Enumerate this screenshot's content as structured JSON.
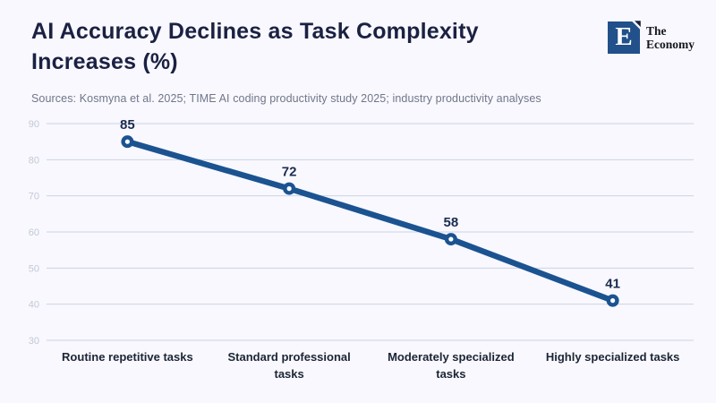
{
  "header": {
    "title_lines": [
      "AI Accuracy Declines as Task Complexity",
      "Increases (%)"
    ],
    "logo": {
      "letter": "E",
      "name_lines": [
        "The",
        "Economy"
      ]
    }
  },
  "sources": "Sources: Kosmyna et al. 2025; TIME AI coding productivity study 2025; industry productivity analyses",
  "colors": {
    "background": "#f8f8fe",
    "title": "#1b2142",
    "line": "#1b5391",
    "marker_fill": "#ffffff",
    "grid": "#ccd3e2",
    "tick_label": "#c3c9d7",
    "value_label": "#1a2b50",
    "x_label": "#1c2534",
    "sources_text": "#707689",
    "logo_square": "#21508a",
    "logo_notch": "#152238"
  },
  "chart_data": {
    "type": "line",
    "title": "AI Accuracy Declines as Task Complexity Increases (%)",
    "categories": [
      "Routine repetitive tasks",
      "Standard professional tasks",
      "Moderately specialized tasks",
      "Highly specialized tasks"
    ],
    "categories_wrapped": [
      [
        "Routine repetitive tasks"
      ],
      [
        "Standard professional",
        "tasks"
      ],
      [
        "Moderately specialized",
        "tasks"
      ],
      [
        "Highly specialized tasks"
      ]
    ],
    "values": [
      85,
      72,
      58,
      41
    ],
    "data_labels": [
      "85",
      "72",
      "58",
      "41"
    ],
    "xlabel": "",
    "ylabel": "",
    "ylim": [
      30,
      90
    ],
    "yticks": [
      90,
      80,
      70,
      60,
      50,
      40,
      30
    ],
    "grid": "horizontal",
    "legend": "none",
    "marker": "open-circle"
  }
}
